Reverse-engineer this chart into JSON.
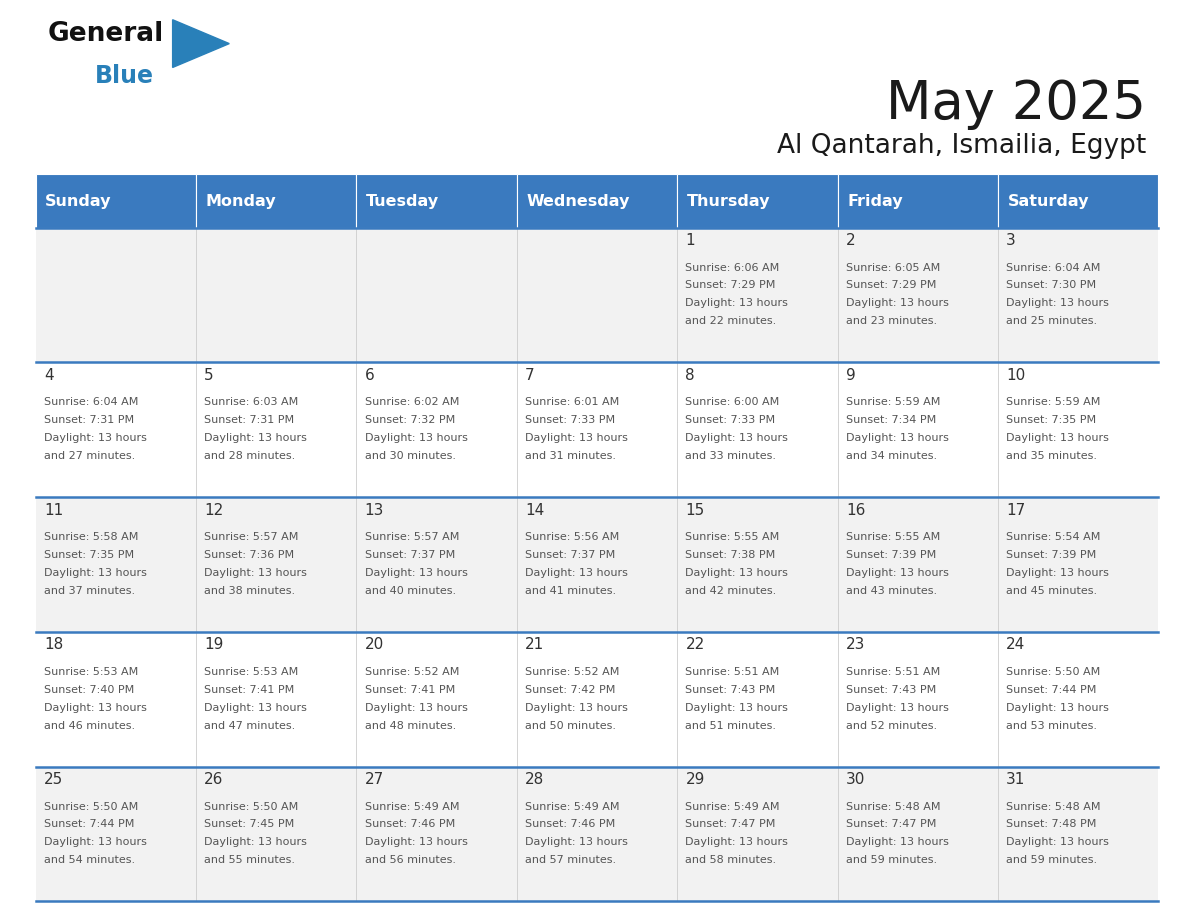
{
  "title": "May 2025",
  "subtitle": "Al Qantarah, Ismailia, Egypt",
  "header_bg_color": "#3a7abf",
  "header_text_color": "#ffffff",
  "day_names": [
    "Sunday",
    "Monday",
    "Tuesday",
    "Wednesday",
    "Thursday",
    "Friday",
    "Saturday"
  ],
  "row_bg_colors": [
    "#f2f2f2",
    "#ffffff",
    "#f2f2f2",
    "#ffffff",
    "#f2f2f2"
  ],
  "cell_text_color": "#555555",
  "day_num_color": "#333333",
  "divider_color": "#3a7abf",
  "col_sep_color": "#cccccc",
  "logo_general_color": "#111111",
  "logo_blue_color": "#2980b9",
  "background_color": "#ffffff",
  "weeks": [
    {
      "days": [
        {
          "date": "",
          "sunrise": "",
          "sunset": "",
          "daylight": ""
        },
        {
          "date": "",
          "sunrise": "",
          "sunset": "",
          "daylight": ""
        },
        {
          "date": "",
          "sunrise": "",
          "sunset": "",
          "daylight": ""
        },
        {
          "date": "",
          "sunrise": "",
          "sunset": "",
          "daylight": ""
        },
        {
          "date": "1",
          "sunrise": "6:06 AM",
          "sunset": "7:29 PM",
          "daylight": "13 hours and 22 minutes."
        },
        {
          "date": "2",
          "sunrise": "6:05 AM",
          "sunset": "7:29 PM",
          "daylight": "13 hours and 23 minutes."
        },
        {
          "date": "3",
          "sunrise": "6:04 AM",
          "sunset": "7:30 PM",
          "daylight": "13 hours and 25 minutes."
        }
      ]
    },
    {
      "days": [
        {
          "date": "4",
          "sunrise": "6:04 AM",
          "sunset": "7:31 PM",
          "daylight": "13 hours and 27 minutes."
        },
        {
          "date": "5",
          "sunrise": "6:03 AM",
          "sunset": "7:31 PM",
          "daylight": "13 hours and 28 minutes."
        },
        {
          "date": "6",
          "sunrise": "6:02 AM",
          "sunset": "7:32 PM",
          "daylight": "13 hours and 30 minutes."
        },
        {
          "date": "7",
          "sunrise": "6:01 AM",
          "sunset": "7:33 PM",
          "daylight": "13 hours and 31 minutes."
        },
        {
          "date": "8",
          "sunrise": "6:00 AM",
          "sunset": "7:33 PM",
          "daylight": "13 hours and 33 minutes."
        },
        {
          "date": "9",
          "sunrise": "5:59 AM",
          "sunset": "7:34 PM",
          "daylight": "13 hours and 34 minutes."
        },
        {
          "date": "10",
          "sunrise": "5:59 AM",
          "sunset": "7:35 PM",
          "daylight": "13 hours and 35 minutes."
        }
      ]
    },
    {
      "days": [
        {
          "date": "11",
          "sunrise": "5:58 AM",
          "sunset": "7:35 PM",
          "daylight": "13 hours and 37 minutes."
        },
        {
          "date": "12",
          "sunrise": "5:57 AM",
          "sunset": "7:36 PM",
          "daylight": "13 hours and 38 minutes."
        },
        {
          "date": "13",
          "sunrise": "5:57 AM",
          "sunset": "7:37 PM",
          "daylight": "13 hours and 40 minutes."
        },
        {
          "date": "14",
          "sunrise": "5:56 AM",
          "sunset": "7:37 PM",
          "daylight": "13 hours and 41 minutes."
        },
        {
          "date": "15",
          "sunrise": "5:55 AM",
          "sunset": "7:38 PM",
          "daylight": "13 hours and 42 minutes."
        },
        {
          "date": "16",
          "sunrise": "5:55 AM",
          "sunset": "7:39 PM",
          "daylight": "13 hours and 43 minutes."
        },
        {
          "date": "17",
          "sunrise": "5:54 AM",
          "sunset": "7:39 PM",
          "daylight": "13 hours and 45 minutes."
        }
      ]
    },
    {
      "days": [
        {
          "date": "18",
          "sunrise": "5:53 AM",
          "sunset": "7:40 PM",
          "daylight": "13 hours and 46 minutes."
        },
        {
          "date": "19",
          "sunrise": "5:53 AM",
          "sunset": "7:41 PM",
          "daylight": "13 hours and 47 minutes."
        },
        {
          "date": "20",
          "sunrise": "5:52 AM",
          "sunset": "7:41 PM",
          "daylight": "13 hours and 48 minutes."
        },
        {
          "date": "21",
          "sunrise": "5:52 AM",
          "sunset": "7:42 PM",
          "daylight": "13 hours and 50 minutes."
        },
        {
          "date": "22",
          "sunrise": "5:51 AM",
          "sunset": "7:43 PM",
          "daylight": "13 hours and 51 minutes."
        },
        {
          "date": "23",
          "sunrise": "5:51 AM",
          "sunset": "7:43 PM",
          "daylight": "13 hours and 52 minutes."
        },
        {
          "date": "24",
          "sunrise": "5:50 AM",
          "sunset": "7:44 PM",
          "daylight": "13 hours and 53 minutes."
        }
      ]
    },
    {
      "days": [
        {
          "date": "25",
          "sunrise": "5:50 AM",
          "sunset": "7:44 PM",
          "daylight": "13 hours and 54 minutes."
        },
        {
          "date": "26",
          "sunrise": "5:50 AM",
          "sunset": "7:45 PM",
          "daylight": "13 hours and 55 minutes."
        },
        {
          "date": "27",
          "sunrise": "5:49 AM",
          "sunset": "7:46 PM",
          "daylight": "13 hours and 56 minutes."
        },
        {
          "date": "28",
          "sunrise": "5:49 AM",
          "sunset": "7:46 PM",
          "daylight": "13 hours and 57 minutes."
        },
        {
          "date": "29",
          "sunrise": "5:49 AM",
          "sunset": "7:47 PM",
          "daylight": "13 hours and 58 minutes."
        },
        {
          "date": "30",
          "sunrise": "5:48 AM",
          "sunset": "7:47 PM",
          "daylight": "13 hours and 59 minutes."
        },
        {
          "date": "31",
          "sunrise": "5:48 AM",
          "sunset": "7:48 PM",
          "daylight": "13 hours and 59 minutes."
        }
      ]
    }
  ]
}
